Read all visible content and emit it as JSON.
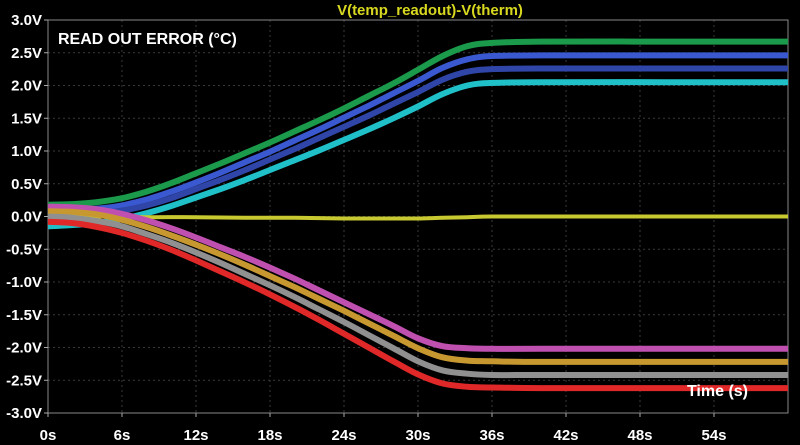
{
  "chart_data": {
    "type": "line",
    "title": "V(temp_readout)-V(therm)",
    "annotations": {
      "top_left": "READ OUT ERROR (°C)",
      "bottom_right": "Time (s)"
    },
    "xlim": [
      0,
      60
    ],
    "ylim": [
      -3.0,
      3.0
    ],
    "x_ticks": [
      0,
      6,
      12,
      18,
      24,
      30,
      36,
      42,
      48,
      54
    ],
    "x_tick_labels": [
      "0s",
      "6s",
      "12s",
      "18s",
      "24s",
      "30s",
      "36s",
      "42s",
      "48s",
      "54s"
    ],
    "y_ticks": [
      3.0,
      2.5,
      2.0,
      1.5,
      1.0,
      0.5,
      0.0,
      -0.5,
      -1.0,
      -1.5,
      -2.0,
      -2.5,
      -3.0
    ],
    "y_tick_labels": [
      "3.0V",
      "2.5V",
      "2.0V",
      "1.5V",
      "1.0V",
      "0.5V",
      "0.0V",
      "-0.5V",
      "-1.0V",
      "-1.5V",
      "-2.0V",
      "-2.5V",
      "-3.0V"
    ],
    "grid": true,
    "series": [
      {
        "color": "#1a9a4a",
        "x": [
          0,
          2,
          4,
          6,
          8,
          10,
          12,
          14,
          16,
          18,
          20,
          22,
          24,
          26,
          28,
          30,
          32,
          34,
          36,
          40,
          50,
          60
        ],
        "values": [
          0.18,
          0.19,
          0.22,
          0.28,
          0.38,
          0.51,
          0.66,
          0.81,
          0.97,
          1.13,
          1.3,
          1.47,
          1.65,
          1.84,
          2.03,
          2.24,
          2.45,
          2.6,
          2.65,
          2.67,
          2.67,
          2.67
        ]
      },
      {
        "color": "#3a58d0",
        "x": [
          0,
          2,
          4,
          6,
          8,
          10,
          12,
          14,
          16,
          18,
          20,
          22,
          24,
          26,
          28,
          30,
          32,
          34,
          36,
          40,
          50,
          60
        ],
        "values": [
          0.1,
          0.1,
          0.12,
          0.17,
          0.26,
          0.38,
          0.52,
          0.67,
          0.83,
          0.99,
          1.16,
          1.33,
          1.51,
          1.69,
          1.88,
          2.07,
          2.27,
          2.4,
          2.45,
          2.46,
          2.46,
          2.46
        ]
      },
      {
        "color": "#2f45a8",
        "x": [
          0,
          2,
          4,
          6,
          8,
          10,
          12,
          14,
          16,
          18,
          20,
          22,
          24,
          26,
          28,
          30,
          32,
          34,
          36,
          40,
          50,
          60
        ],
        "values": [
          0.02,
          0.02,
          0.04,
          0.09,
          0.17,
          0.28,
          0.42,
          0.56,
          0.71,
          0.87,
          1.03,
          1.2,
          1.37,
          1.54,
          1.72,
          1.9,
          2.09,
          2.21,
          2.25,
          2.26,
          2.26,
          2.26
        ]
      },
      {
        "color": "#20c0c8",
        "x": [
          0,
          2,
          4,
          6,
          8,
          10,
          12,
          14,
          16,
          18,
          20,
          22,
          24,
          26,
          28,
          30,
          32,
          34,
          36,
          40,
          50,
          60
        ],
        "values": [
          -0.15,
          -0.13,
          -0.1,
          -0.04,
          0.05,
          0.16,
          0.29,
          0.42,
          0.56,
          0.71,
          0.86,
          1.01,
          1.17,
          1.33,
          1.5,
          1.68,
          1.87,
          2.0,
          2.04,
          2.05,
          2.05,
          2.05
        ]
      },
      {
        "color": "#c8c830",
        "x": [
          0,
          4,
          8,
          12,
          16,
          20,
          24,
          28,
          30,
          32,
          34,
          36,
          40,
          50,
          60
        ],
        "values": [
          0.0,
          0.0,
          -0.01,
          -0.01,
          -0.02,
          -0.02,
          -0.03,
          -0.03,
          -0.03,
          -0.02,
          -0.01,
          0.0,
          0.0,
          0.0,
          0.0
        ]
      },
      {
        "color": "#c050b0",
        "x": [
          0,
          2,
          4,
          6,
          8,
          10,
          12,
          14,
          16,
          18,
          20,
          22,
          24,
          26,
          28,
          30,
          32,
          34,
          36,
          40,
          50,
          60
        ],
        "values": [
          0.15,
          0.14,
          0.11,
          0.04,
          -0.06,
          -0.18,
          -0.32,
          -0.47,
          -0.62,
          -0.78,
          -0.95,
          -1.13,
          -1.31,
          -1.49,
          -1.67,
          -1.86,
          -1.98,
          -2.01,
          -2.02,
          -2.02,
          -2.02,
          -2.02
        ]
      },
      {
        "color": "#c89830",
        "x": [
          0,
          2,
          4,
          6,
          8,
          10,
          12,
          14,
          16,
          18,
          20,
          22,
          24,
          26,
          28,
          30,
          32,
          34,
          36,
          40,
          50,
          60
        ],
        "values": [
          0.08,
          0.07,
          0.03,
          -0.05,
          -0.16,
          -0.29,
          -0.43,
          -0.58,
          -0.74,
          -0.91,
          -1.08,
          -1.26,
          -1.44,
          -1.63,
          -1.82,
          -2.01,
          -2.15,
          -2.2,
          -2.21,
          -2.22,
          -2.22,
          -2.22
        ]
      },
      {
        "color": "#909090",
        "x": [
          0,
          2,
          4,
          6,
          8,
          10,
          12,
          14,
          16,
          18,
          20,
          22,
          24,
          26,
          28,
          30,
          32,
          34,
          36,
          40,
          50,
          60
        ],
        "values": [
          0.0,
          -0.02,
          -0.07,
          -0.15,
          -0.27,
          -0.4,
          -0.55,
          -0.71,
          -0.88,
          -1.05,
          -1.23,
          -1.42,
          -1.61,
          -1.81,
          -2.01,
          -2.21,
          -2.35,
          -2.4,
          -2.42,
          -2.42,
          -2.42,
          -2.42
        ]
      },
      {
        "color": "#e02828",
        "x": [
          0,
          2,
          4,
          6,
          8,
          10,
          12,
          14,
          16,
          18,
          20,
          22,
          24,
          26,
          28,
          30,
          32,
          34,
          36,
          40,
          50,
          60
        ],
        "values": [
          -0.08,
          -0.1,
          -0.16,
          -0.25,
          -0.37,
          -0.51,
          -0.67,
          -0.84,
          -1.01,
          -1.19,
          -1.38,
          -1.58,
          -1.79,
          -2.0,
          -2.21,
          -2.41,
          -2.55,
          -2.6,
          -2.61,
          -2.62,
          -2.62,
          -2.62
        ]
      }
    ]
  }
}
